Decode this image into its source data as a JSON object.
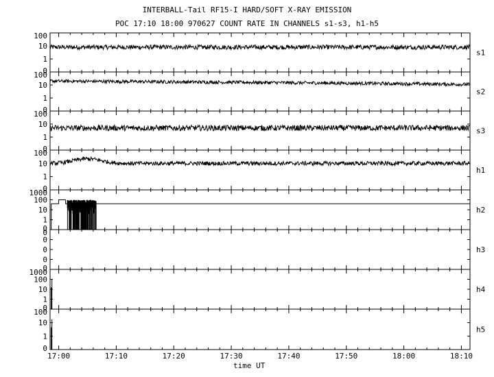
{
  "header": {
    "title": "INTERBALL-Tail RF15-I HARD/SOFT X-RAY EMISSION",
    "subtitle": "POC 17:10 18:00 970627  COUNT RATE IN CHANNELS s1-s3, h1-h5"
  },
  "chart_data": {
    "type": "line",
    "title": "INTERBALL-Tail RF15-I HARD/SOFT X-RAY EMISSION",
    "subtitle": "POC 17:10 18:00 970627  COUNT RATE IN CHANNELS s1-s3, h1-h5",
    "xlabel": "time UT",
    "x_ticks": [
      "17:00",
      "17:10",
      "17:20",
      "17:30",
      "17:40",
      "17:50",
      "18:00",
      "18:10"
    ],
    "x_range_minutes": [
      -1.5,
      71.5
    ],
    "x_tick_minutes": [
      0,
      10,
      20,
      30,
      40,
      50,
      60,
      70
    ],
    "y_scale": "log",
    "grid": false,
    "panels": [
      {
        "name": "s1",
        "ytick_labels": [
          "100",
          "10",
          "1",
          "0"
        ],
        "ylim": [
          0.1,
          100
        ],
        "series": [
          {
            "kind": "noise",
            "level": 8,
            "spread": 0.08
          }
        ]
      },
      {
        "name": "s2",
        "ytick_labels": [
          "100",
          "10",
          "1",
          "0"
        ],
        "ylim": [
          0.1,
          100
        ],
        "series": [
          {
            "kind": "trend",
            "start": 20,
            "end": 11,
            "spread": 0.06
          }
        ]
      },
      {
        "name": "s3",
        "ytick_labels": [
          "100",
          "10",
          "1",
          "0"
        ],
        "ylim": [
          0.1,
          100
        ],
        "series": [
          {
            "kind": "noise",
            "level": 5,
            "spread": 0.1
          }
        ]
      },
      {
        "name": "h1",
        "ytick_labels": [
          "100",
          "10",
          "1",
          "0"
        ],
        "ylim": [
          0.1,
          100
        ],
        "series": [
          {
            "kind": "bump",
            "level": 10,
            "peak": 22,
            "peak_at": 5,
            "spread": 0.07
          }
        ]
      },
      {
        "name": "h2",
        "ytick_labels": [
          "1000",
          "100",
          "10",
          "1",
          "0"
        ],
        "ylim": [
          0.1,
          1000
        ],
        "series": [
          {
            "kind": "burst",
            "level": 40,
            "burst_start": 1.5,
            "burst_end": 6.5
          }
        ]
      },
      {
        "name": "h3",
        "ytick_labels": [
          "0",
          "0",
          "0",
          "0",
          "0"
        ],
        "ylim": [
          0.1,
          1000
        ],
        "series": []
      },
      {
        "name": "h4",
        "ytick_labels": [
          "1000",
          "100",
          "10",
          "1",
          "0"
        ],
        "ylim": [
          0.1,
          1000
        ],
        "series": [
          {
            "kind": "spike",
            "at": -1.3
          }
        ]
      },
      {
        "name": "h5",
        "ytick_labels": [
          "100",
          "10",
          "1",
          "0"
        ],
        "ylim": [
          0.1,
          100
        ],
        "series": [
          {
            "kind": "spike",
            "at": -1.3
          }
        ]
      }
    ]
  }
}
